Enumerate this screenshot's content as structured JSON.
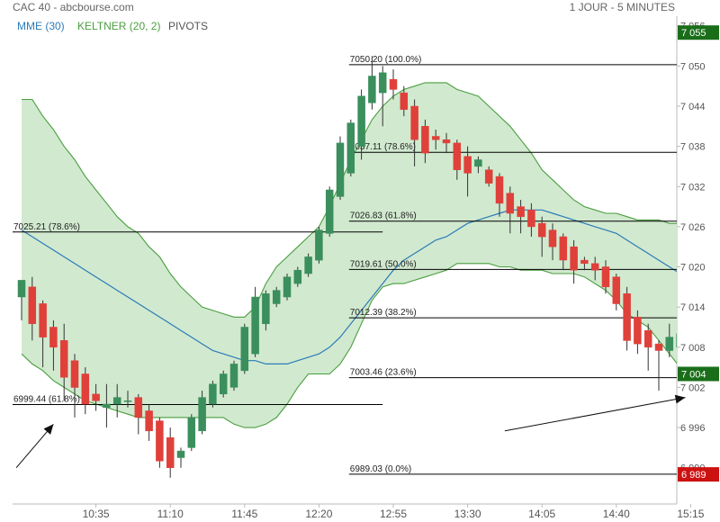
{
  "header": {
    "title": "CAC 40 - abcbourse.com",
    "period": "1 JOUR - 5 MINUTES"
  },
  "legend": [
    {
      "label": "MME (30)",
      "color": "#2b7bb9"
    },
    {
      "label": "KELTNER (20, 2)",
      "color": "#4a9e3f"
    },
    {
      "label": "PIVOTS",
      "color": "#555555"
    }
  ],
  "colors": {
    "up": "#3a8f5c",
    "down": "#e0403a",
    "keltner_line": "#4a9e3f",
    "keltner_fill": "#cfe8cc",
    "ema": "#2b7bb9",
    "level_line": "#000000",
    "badge_green": "#1a6e1a",
    "badge_red": "#cc1111"
  },
  "price_badges": [
    {
      "value": 7055,
      "label": "7 055",
      "color": "#1a6e1a",
      "text_color": "#ffffff"
    },
    {
      "value": 7004,
      "label": "7 004",
      "color": "#1a6e1a",
      "text_color": "#ffffff"
    },
    {
      "value": 6989,
      "label": "6 989",
      "color": "#cc1111",
      "text_color": "#ffffff"
    }
  ],
  "chart_data": {
    "type": "candlestick",
    "title": "CAC 40 - abcbourse.com",
    "ylim": [
      6987,
      7056.5
    ],
    "y_ticks": [
      {
        "value": 7056,
        "label": "7 056"
      },
      {
        "value": 7050,
        "label": "7 050"
      },
      {
        "value": 7044,
        "label": "7 044"
      },
      {
        "value": 7038,
        "label": "7 038"
      },
      {
        "value": 7032,
        "label": "7 032"
      },
      {
        "value": 7026,
        "label": "7 026"
      },
      {
        "value": 7020,
        "label": "7 020"
      },
      {
        "value": 7014,
        "label": "7 014"
      },
      {
        "value": 7008,
        "label": "7 008"
      },
      {
        "value": 7002,
        "label": "7 002"
      },
      {
        "value": 6996,
        "label": "6 996"
      },
      {
        "value": 6990,
        "label": "6 990"
      }
    ],
    "x_ticks": [
      {
        "index": 7,
        "label": "10:35"
      },
      {
        "index": 14,
        "label": "11:10"
      },
      {
        "index": 21,
        "label": "11:45"
      },
      {
        "index": 28,
        "label": "12:20"
      },
      {
        "index": 35,
        "label": "12:55"
      },
      {
        "index": 42,
        "label": "13:30"
      },
      {
        "index": 49,
        "label": "14:05"
      },
      {
        "index": 56,
        "label": "14:40"
      },
      {
        "index": 63,
        "label": "15:15"
      }
    ],
    "candles": [
      {
        "o": 7015.5,
        "h": 7018.0,
        "l": 7012.0,
        "c": 7018.0
      },
      {
        "o": 7017.0,
        "h": 7018.5,
        "l": 7009.0,
        "c": 7011.5
      },
      {
        "o": 7014.5,
        "h": 7015.0,
        "l": 7005.0,
        "c": 7009.5
      },
      {
        "o": 7011.0,
        "h": 7012.0,
        "l": 7004.5,
        "c": 7008.0
      },
      {
        "o": 7009.0,
        "h": 7011.5,
        "l": 7000.0,
        "c": 7003.5
      },
      {
        "o": 7006.0,
        "h": 7007.0,
        "l": 6997.5,
        "c": 7002.0
      },
      {
        "o": 7004.0,
        "h": 7005.0,
        "l": 6998.0,
        "c": 6999.5
      },
      {
        "o": 7001.0,
        "h": 7002.5,
        "l": 6998.5,
        "c": 7000.0
      },
      {
        "o": 6999.0,
        "h": 7002.5,
        "l": 6996.0,
        "c": 6999.5
      },
      {
        "o": 6999.5,
        "h": 7002.5,
        "l": 6997.5,
        "c": 7000.5
      },
      {
        "o": 7000.0,
        "h": 7001.5,
        "l": 6999.0,
        "c": 7000.0
      },
      {
        "o": 7000.5,
        "h": 7001.0,
        "l": 6995.0,
        "c": 6997.5
      },
      {
        "o": 6998.5,
        "h": 6999.5,
        "l": 6994.0,
        "c": 6995.5
      },
      {
        "o": 6997.0,
        "h": 6997.5,
        "l": 6990.0,
        "c": 6991.0
      },
      {
        "o": 6994.5,
        "h": 6996.0,
        "l": 6988.5,
        "c": 6990.0
      },
      {
        "o": 6991.5,
        "h": 6993.0,
        "l": 6990.0,
        "c": 6992.5
      },
      {
        "o": 6993.0,
        "h": 6998.0,
        "l": 6992.5,
        "c": 6997.5
      },
      {
        "o": 6995.5,
        "h": 7001.5,
        "l": 6995.0,
        "c": 7000.5
      },
      {
        "o": 6999.5,
        "h": 7003.0,
        "l": 6999.0,
        "c": 7002.5
      },
      {
        "o": 7001.0,
        "h": 7004.5,
        "l": 7000.5,
        "c": 7004.0
      },
      {
        "o": 7002.0,
        "h": 7006.0,
        "l": 7001.5,
        "c": 7005.5
      },
      {
        "o": 7004.5,
        "h": 7011.5,
        "l": 7004.0,
        "c": 7011.0
      },
      {
        "o": 7007.0,
        "h": 7017.0,
        "l": 7006.5,
        "c": 7015.5
      },
      {
        "o": 7011.5,
        "h": 7016.5,
        "l": 7010.5,
        "c": 7016.0
      },
      {
        "o": 7014.5,
        "h": 7017.0,
        "l": 7014.0,
        "c": 7016.5
      },
      {
        "o": 7015.5,
        "h": 7019.0,
        "l": 7015.0,
        "c": 7018.5
      },
      {
        "o": 7017.5,
        "h": 7020.0,
        "l": 7017.0,
        "c": 7019.5
      },
      {
        "o": 7019.0,
        "h": 7022.0,
        "l": 7018.5,
        "c": 7021.5
      },
      {
        "o": 7021.0,
        "h": 7026.0,
        "l": 7020.5,
        "c": 7025.5
      },
      {
        "o": 7025.0,
        "h": 7032.0,
        "l": 7024.5,
        "c": 7031.5
      },
      {
        "o": 7030.5,
        "h": 7039.5,
        "l": 7030.0,
        "c": 7038.5
      },
      {
        "o": 7034.0,
        "h": 7042.0,
        "l": 7033.5,
        "c": 7041.5
      },
      {
        "o": 7038.0,
        "h": 7046.5,
        "l": 7036.0,
        "c": 7045.5
      },
      {
        "o": 7044.5,
        "h": 7051.5,
        "l": 7043.5,
        "c": 7048.5
      },
      {
        "o": 7046.0,
        "h": 7050.0,
        "l": 7041.0,
        "c": 7049.0
      },
      {
        "o": 7048.0,
        "h": 7049.5,
        "l": 7045.0,
        "c": 7046.5
      },
      {
        "o": 7046.0,
        "h": 7047.0,
        "l": 7042.5,
        "c": 7043.5
      },
      {
        "o": 7044.0,
        "h": 7045.0,
        "l": 7035.0,
        "c": 7039.0
      },
      {
        "o": 7041.0,
        "h": 7042.0,
        "l": 7035.5,
        "c": 7037.0
      },
      {
        "o": 7039.5,
        "h": 7040.5,
        "l": 7037.5,
        "c": 7039.0
      },
      {
        "o": 7039.0,
        "h": 7040.0,
        "l": 7037.0,
        "c": 7038.5
      },
      {
        "o": 7038.5,
        "h": 7039.0,
        "l": 7033.0,
        "c": 7034.5
      },
      {
        "o": 7036.5,
        "h": 7038.0,
        "l": 7030.5,
        "c": 7034.0
      },
      {
        "o": 7035.0,
        "h": 7036.5,
        "l": 7034.0,
        "c": 7036.0
      },
      {
        "o": 7034.5,
        "h": 7035.0,
        "l": 7032.0,
        "c": 7032.5
      },
      {
        "o": 7033.5,
        "h": 7034.0,
        "l": 7027.5,
        "c": 7029.5
      },
      {
        "o": 7031.0,
        "h": 7032.0,
        "l": 7025.0,
        "c": 7028.0
      },
      {
        "o": 7029.0,
        "h": 7030.0,
        "l": 7025.0,
        "c": 7027.5
      },
      {
        "o": 7028.5,
        "h": 7029.5,
        "l": 7024.5,
        "c": 7026.0
      },
      {
        "o": 7026.5,
        "h": 7027.5,
        "l": 7021.5,
        "c": 7024.5
      },
      {
        "o": 7025.5,
        "h": 7026.5,
        "l": 7021.0,
        "c": 7023.0
      },
      {
        "o": 7024.5,
        "h": 7025.0,
        "l": 7019.5,
        "c": 7021.0
      },
      {
        "o": 7023.0,
        "h": 7024.0,
        "l": 7017.5,
        "c": 7019.5
      },
      {
        "o": 7021.0,
        "h": 7021.5,
        "l": 7019.5,
        "c": 7020.5
      },
      {
        "o": 7020.5,
        "h": 7021.5,
        "l": 7018.0,
        "c": 7019.5
      },
      {
        "o": 7020.0,
        "h": 7021.0,
        "l": 7016.0,
        "c": 7017.0
      },
      {
        "o": 7018.5,
        "h": 7019.0,
        "l": 7013.5,
        "c": 7014.5
      },
      {
        "o": 7016.0,
        "h": 7017.0,
        "l": 7007.5,
        "c": 7009.0
      },
      {
        "o": 7012.5,
        "h": 7013.5,
        "l": 7007.0,
        "c": 7008.5
      },
      {
        "o": 7010.5,
        "h": 7011.5,
        "l": 7004.5,
        "c": 7008.0
      },
      {
        "o": 7008.5,
        "h": 7009.0,
        "l": 7001.5,
        "c": 7007.5
      },
      {
        "o": 7007.5,
        "h": 7011.5,
        "l": 7006.5,
        "c": 7009.5
      },
      {
        "o": 7008.0,
        "h": 7013.0,
        "l": 7007.5,
        "c": 7010.0
      },
      {
        "o": 7009.0,
        "h": 7010.0,
        "l": 7004.0,
        "c": 7005.5
      },
      {
        "o": 7008.0,
        "h": 7012.0,
        "l": 7005.5,
        "c": 7008.0
      },
      {
        "o": 7007.5,
        "h": 7008.5,
        "l": 7005.5,
        "c": 7007.5
      },
      {
        "o": 7007.0,
        "h": 7008.0,
        "l": 7002.5,
        "c": 7003.5
      }
    ],
    "keltner": {
      "name": "KELTNER (20, 2)",
      "upper": [
        7045.0,
        7045.0,
        7042.5,
        7040.5,
        7038.0,
        7036.0,
        7033.5,
        7031.5,
        7029.5,
        7027.5,
        7026.0,
        7025.0,
        7023.0,
        7021.5,
        7019.0,
        7017.0,
        7015.5,
        7014.0,
        7013.5,
        7013.0,
        7012.5,
        7012.5,
        7014.0,
        7017.5,
        7020.0,
        7021.5,
        7023.0,
        7024.5,
        7026.0,
        7029.0,
        7032.5,
        7036.0,
        7039.0,
        7042.0,
        7044.0,
        7045.5,
        7046.5,
        7047.0,
        7047.5,
        7047.5,
        7047.5,
        7046.5,
        7046.0,
        7045.5,
        7044.0,
        7042.5,
        7041.0,
        7039.0,
        7037.0,
        7034.5,
        7033.0,
        7031.5,
        7030.0,
        7029.0,
        7028.5,
        7028.0,
        7028.0,
        7027.5,
        7027.0,
        7027.0,
        7027.0,
        7026.5,
        7026.5,
        7026.5,
        7026.5,
        7026.5,
        7026.5
      ],
      "lower": [
        7007.0,
        7005.5,
        7004.5,
        7003.0,
        7002.0,
        7001.0,
        7000.0,
        6999.5,
        6999.0,
        6998.5,
        6998.0,
        6997.5,
        6997.5,
        6997.5,
        6997.5,
        6997.5,
        6997.5,
        6997.5,
        6997.5,
        6997.5,
        6996.5,
        6996.0,
        6996.0,
        6996.5,
        6997.5,
        6999.5,
        7002.0,
        7004.0,
        7004.0,
        7004.0,
        7005.5,
        7008.0,
        7011.5,
        7015.0,
        7017.0,
        7017.5,
        7017.5,
        7018.0,
        7018.5,
        7019.0,
        7019.5,
        7020.5,
        7020.5,
        7020.5,
        7020.5,
        7020.0,
        7020.0,
        7019.5,
        7019.5,
        7019.5,
        7019.0,
        7019.0,
        7019.0,
        7018.5,
        7017.5,
        7016.5,
        7015.0,
        7013.0,
        7012.0,
        7011.0,
        7009.0,
        7007.0,
        7005.0,
        7003.5,
        7002.5,
        7001.5,
        7000.5
      ]
    },
    "ema": {
      "name": "MME (30)",
      "values": [
        7025.5,
        7024.5,
        7023.5,
        7022.5,
        7021.5,
        7020.5,
        7019.5,
        7018.5,
        7017.5,
        7016.5,
        7015.5,
        7014.5,
        7013.5,
        7012.5,
        7011.5,
        7010.5,
        7009.5,
        7008.5,
        7007.5,
        7007.0,
        7006.5,
        7006.0,
        7006.0,
        7005.5,
        7005.5,
        7005.5,
        7006.0,
        7006.5,
        7007.0,
        7008.0,
        7009.5,
        7011.5,
        7013.5,
        7015.5,
        7017.5,
        7019.5,
        7021.0,
        7022.0,
        7023.0,
        7024.0,
        7024.5,
        7025.5,
        7026.5,
        7027.0,
        7027.5,
        7028.0,
        7028.5,
        7028.5,
        7028.5,
        7028.5,
        7028.0,
        7027.5,
        7027.0,
        7026.5,
        7026.0,
        7025.5,
        7025.0,
        7024.0,
        7023.0,
        7022.0,
        7021.0,
        7020.0,
        7019.0,
        7018.5,
        7018.0,
        7017.0,
        7016.0
      ]
    },
    "fib_levels": [
      {
        "value": 7050.2,
        "label": "7050.20  (100.0%)",
        "from": 31,
        "to": 67
      },
      {
        "value": 7037.11,
        "label": "7037.11  (78.6%)",
        "from": 31,
        "to": 67
      },
      {
        "value": 7026.83,
        "label": "7026.83  (61.8%)",
        "from": 31,
        "to": 67
      },
      {
        "value": 7025.21,
        "label": "7025.21  (78.6%)",
        "from": 0,
        "to": 34
      },
      {
        "value": 7019.61,
        "label": "7019.61  (50.0%)",
        "from": 31,
        "to": 67
      },
      {
        "value": 7012.39,
        "label": "7012.39  (38.2%)",
        "from": 31,
        "to": 67
      },
      {
        "value": 7003.46,
        "label": "7003.46  (23.6%)",
        "from": 31,
        "to": 67
      },
      {
        "value": 6999.44,
        "label": "6999.44  (61.8%)",
        "from": 0,
        "to": 34
      },
      {
        "value": 6989.03,
        "label": "6989.03  (0.0%)",
        "from": 31,
        "to": 67
      }
    ],
    "trend_lines": [
      {
        "x1": -0.5,
        "y1": 6990.0,
        "x2": 3.0,
        "y2": 6996.5
      },
      {
        "x1": 45.5,
        "y1": 6995.5,
        "x2": 62.5,
        "y2": 7000.5
      }
    ]
  }
}
